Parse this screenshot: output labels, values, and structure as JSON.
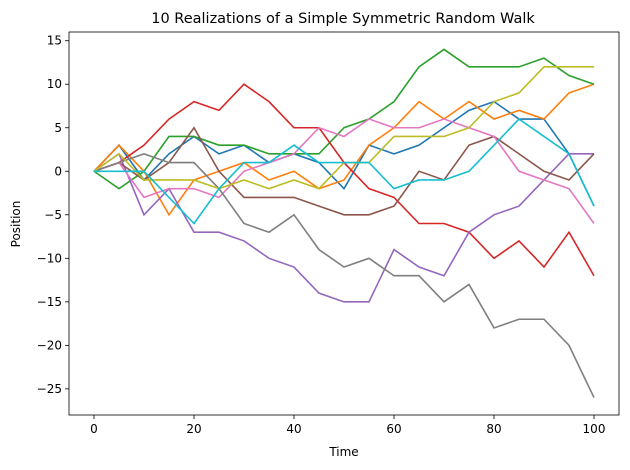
{
  "chart_data": {
    "type": "line",
    "title": "10 Realizations of a Simple Symmetric Random Walk",
    "xlabel": "Time",
    "ylabel": "Position",
    "xlim": [
      -5,
      105
    ],
    "ylim": [
      -28,
      16
    ],
    "xticks": [
      0,
      20,
      40,
      60,
      80,
      100
    ],
    "yticks": [
      15,
      10,
      5,
      0,
      -5,
      -10,
      -15,
      -20,
      -25
    ],
    "grid": false,
    "legend": "none",
    "series": [
      {
        "color": "#1f77b4",
        "points": [
          [
            0,
            0
          ],
          [
            5,
            3
          ],
          [
            10,
            -1
          ],
          [
            15,
            2
          ],
          [
            20,
            4
          ],
          [
            25,
            2
          ],
          [
            30,
            3
          ],
          [
            35,
            1
          ],
          [
            40,
            2
          ],
          [
            45,
            1
          ],
          [
            50,
            -2
          ],
          [
            55,
            3
          ],
          [
            60,
            2
          ],
          [
            65,
            3
          ],
          [
            70,
            5
          ],
          [
            75,
            7
          ],
          [
            80,
            8
          ],
          [
            85,
            6
          ],
          [
            90,
            6
          ],
          [
            95,
            2
          ],
          [
            100,
            -4
          ]
        ]
      },
      {
        "color": "#ff7f0e",
        "points": [
          [
            0,
            0
          ],
          [
            5,
            3
          ],
          [
            10,
            0
          ],
          [
            15,
            -5
          ],
          [
            20,
            -1
          ],
          [
            25,
            0
          ],
          [
            30,
            1
          ],
          [
            35,
            -1
          ],
          [
            40,
            0
          ],
          [
            45,
            -2
          ],
          [
            50,
            -1
          ],
          [
            55,
            3
          ],
          [
            60,
            5
          ],
          [
            65,
            8
          ],
          [
            70,
            6
          ],
          [
            75,
            8
          ],
          [
            80,
            6
          ],
          [
            85,
            7
          ],
          [
            90,
            6
          ],
          [
            95,
            9
          ],
          [
            100,
            10
          ]
        ]
      },
      {
        "color": "#2ca02c",
        "points": [
          [
            0,
            0
          ],
          [
            5,
            -2
          ],
          [
            10,
            0
          ],
          [
            15,
            4
          ],
          [
            20,
            4
          ],
          [
            25,
            3
          ],
          [
            30,
            3
          ],
          [
            35,
            2
          ],
          [
            40,
            2
          ],
          [
            45,
            2
          ],
          [
            50,
            5
          ],
          [
            55,
            6
          ],
          [
            60,
            8
          ],
          [
            65,
            12
          ],
          [
            70,
            14
          ],
          [
            75,
            12
          ],
          [
            80,
            12
          ],
          [
            85,
            12
          ],
          [
            90,
            13
          ],
          [
            95,
            11
          ],
          [
            100,
            10
          ]
        ]
      },
      {
        "color": "#d62728",
        "points": [
          [
            0,
            0
          ],
          [
            5,
            1
          ],
          [
            10,
            3
          ],
          [
            15,
            6
          ],
          [
            20,
            8
          ],
          [
            25,
            7
          ],
          [
            30,
            10
          ],
          [
            35,
            8
          ],
          [
            40,
            5
          ],
          [
            45,
            5
          ],
          [
            50,
            1
          ],
          [
            55,
            -2
          ],
          [
            60,
            -3
          ],
          [
            65,
            -6
          ],
          [
            70,
            -6
          ],
          [
            75,
            -7
          ],
          [
            80,
            -10
          ],
          [
            85,
            -8
          ],
          [
            90,
            -11
          ],
          [
            95,
            -7
          ],
          [
            100,
            -12
          ]
        ]
      },
      {
        "color": "#9467bd",
        "points": [
          [
            0,
            0
          ],
          [
            5,
            2
          ],
          [
            10,
            -5
          ],
          [
            15,
            -2
          ],
          [
            20,
            -7
          ],
          [
            25,
            -7
          ],
          [
            30,
            -8
          ],
          [
            35,
            -10
          ],
          [
            40,
            -11
          ],
          [
            45,
            -14
          ],
          [
            50,
            -15
          ],
          [
            55,
            -15
          ],
          [
            60,
            -9
          ],
          [
            65,
            -11
          ],
          [
            70,
            -12
          ],
          [
            75,
            -7
          ],
          [
            80,
            -5
          ],
          [
            85,
            -4
          ],
          [
            90,
            -1
          ],
          [
            95,
            2
          ],
          [
            100,
            2
          ]
        ]
      },
      {
        "color": "#8c564b",
        "points": [
          [
            0,
            0
          ],
          [
            5,
            1
          ],
          [
            10,
            -1
          ],
          [
            15,
            1
          ],
          [
            20,
            5
          ],
          [
            25,
            0
          ],
          [
            30,
            -3
          ],
          [
            35,
            -3
          ],
          [
            40,
            -3
          ],
          [
            45,
            -4
          ],
          [
            50,
            -5
          ],
          [
            55,
            -5
          ],
          [
            60,
            -4
          ],
          [
            65,
            0
          ],
          [
            70,
            -1
          ],
          [
            75,
            3
          ],
          [
            80,
            4
          ],
          [
            85,
            2
          ],
          [
            90,
            0
          ],
          [
            95,
            -1
          ],
          [
            100,
            2
          ]
        ]
      },
      {
        "color": "#e377c2",
        "points": [
          [
            0,
            0
          ],
          [
            5,
            1
          ],
          [
            10,
            -3
          ],
          [
            15,
            -2
          ],
          [
            20,
            -2
          ],
          [
            25,
            -3
          ],
          [
            30,
            0
          ],
          [
            35,
            1
          ],
          [
            40,
            2
          ],
          [
            45,
            5
          ],
          [
            50,
            4
          ],
          [
            55,
            6
          ],
          [
            60,
            5
          ],
          [
            65,
            5
          ],
          [
            70,
            6
          ],
          [
            75,
            5
          ],
          [
            80,
            4
          ],
          [
            85,
            0
          ],
          [
            90,
            -1
          ],
          [
            95,
            -2
          ],
          [
            100,
            -6
          ]
        ]
      },
      {
        "color": "#7f7f7f",
        "points": [
          [
            0,
            0
          ],
          [
            5,
            1
          ],
          [
            10,
            2
          ],
          [
            15,
            1
          ],
          [
            20,
            1
          ],
          [
            25,
            -2
          ],
          [
            30,
            -6
          ],
          [
            35,
            -7
          ],
          [
            40,
            -5
          ],
          [
            45,
            -9
          ],
          [
            50,
            -11
          ],
          [
            55,
            -10
          ],
          [
            60,
            -12
          ],
          [
            65,
            -12
          ],
          [
            70,
            -15
          ],
          [
            75,
            -13
          ],
          [
            80,
            -18
          ],
          [
            85,
            -17
          ],
          [
            90,
            -17
          ],
          [
            95,
            -20
          ],
          [
            100,
            -26
          ]
        ]
      },
      {
        "color": "#bcbd22",
        "points": [
          [
            0,
            0
          ],
          [
            5,
            2
          ],
          [
            10,
            -1
          ],
          [
            15,
            -1
          ],
          [
            20,
            -1
          ],
          [
            25,
            -2
          ],
          [
            30,
            -1
          ],
          [
            35,
            -2
          ],
          [
            40,
            -1
          ],
          [
            45,
            -2
          ],
          [
            50,
            1
          ],
          [
            55,
            1
          ],
          [
            60,
            4
          ],
          [
            65,
            4
          ],
          [
            70,
            4
          ],
          [
            75,
            5
          ],
          [
            80,
            8
          ],
          [
            85,
            9
          ],
          [
            90,
            12
          ],
          [
            95,
            12
          ],
          [
            100,
            12
          ]
        ]
      },
      {
        "color": "#17becf",
        "points": [
          [
            0,
            0
          ],
          [
            5,
            0
          ],
          [
            10,
            0
          ],
          [
            15,
            -3
          ],
          [
            20,
            -6
          ],
          [
            25,
            -2
          ],
          [
            30,
            1
          ],
          [
            35,
            1
          ],
          [
            40,
            3
          ],
          [
            45,
            1
          ],
          [
            50,
            1
          ],
          [
            55,
            1
          ],
          [
            60,
            -2
          ],
          [
            65,
            -1
          ],
          [
            70,
            -1
          ],
          [
            75,
            0
          ],
          [
            80,
            3
          ],
          [
            85,
            6
          ],
          [
            90,
            4
          ],
          [
            95,
            2
          ],
          [
            100,
            -4
          ]
        ]
      }
    ]
  }
}
